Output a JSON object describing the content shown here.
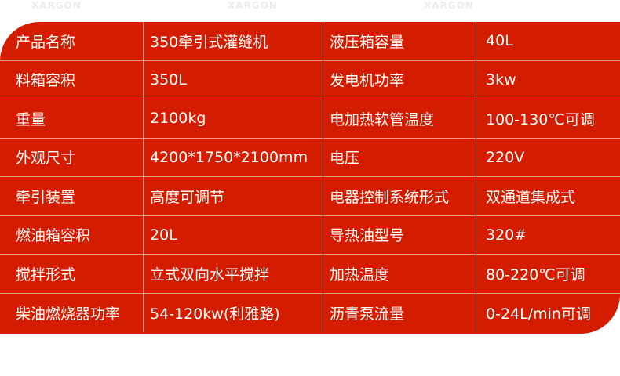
{
  "watermark": "XARGON",
  "colors": {
    "table_bg": "#d41c00",
    "text": "#ffffff"
  },
  "rows": [
    {
      "k1": "产品名称",
      "v1": "350牵引式灌缝机",
      "k2": "液压箱容量",
      "v2": "40L"
    },
    {
      "k1": "料箱容积",
      "v1": "350L",
      "k2": "发电机功率",
      "v2": "3kw"
    },
    {
      "k1": "重量",
      "v1": "2100kg",
      "k2": "电加热软管温度",
      "v2": "100-130℃可调"
    },
    {
      "k1": "外观尺寸",
      "v1": "4200*1750*2100mm",
      "k2": "电压",
      "v2": "220V"
    },
    {
      "k1": "牵引装置",
      "v1": "高度可调节",
      "k2": "电器控制系统形式",
      "v2": "双通道集成式"
    },
    {
      "k1": "燃油箱容积",
      "v1": "20L",
      "k2": "导热油型号",
      "v2": "320#"
    },
    {
      "k1": "搅拌形式",
      "v1": "立式双向水平搅拌",
      "k2": "加热温度",
      "v2": "80-220℃可调"
    },
    {
      "k1": "柴油燃烧器功率",
      "v1": "54-120kw(利雅路)",
      "k2": "沥青泵流量",
      "v2": "0-24L/min可调"
    }
  ]
}
